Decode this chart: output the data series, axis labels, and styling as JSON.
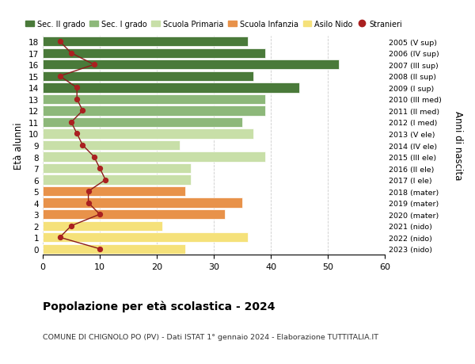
{
  "ages": [
    0,
    1,
    2,
    3,
    4,
    5,
    6,
    7,
    8,
    9,
    10,
    11,
    12,
    13,
    14,
    15,
    16,
    17,
    18
  ],
  "bar_values": [
    25,
    36,
    21,
    32,
    35,
    25,
    26,
    26,
    39,
    24,
    37,
    35,
    39,
    39,
    45,
    37,
    52,
    39,
    36
  ],
  "stranieri": [
    10,
    3,
    5,
    10,
    8,
    8,
    11,
    10,
    9,
    7,
    6,
    5,
    7,
    6,
    6,
    3,
    9,
    5,
    3
  ],
  "bar_colors": [
    "#f5e17a",
    "#f5e17a",
    "#f5e17a",
    "#e8924a",
    "#e8924a",
    "#e8924a",
    "#c8dfa8",
    "#c8dfa8",
    "#c8dfa8",
    "#c8dfa8",
    "#c8dfa8",
    "#8db87a",
    "#8db87a",
    "#8db87a",
    "#4a7a3a",
    "#4a7a3a",
    "#4a7a3a",
    "#4a7a3a",
    "#4a7a3a"
  ],
  "right_labels": [
    "2023 (nido)",
    "2022 (nido)",
    "2021 (nido)",
    "2020 (mater)",
    "2019 (mater)",
    "2018 (mater)",
    "2017 (I ele)",
    "2016 (II ele)",
    "2015 (III ele)",
    "2014 (IV ele)",
    "2013 (V ele)",
    "2012 (I med)",
    "2011 (II med)",
    "2010 (III med)",
    "2009 (I sup)",
    "2008 (II sup)",
    "2007 (III sup)",
    "2006 (IV sup)",
    "2005 (V sup)"
  ],
  "legend_labels": [
    "Sec. II grado",
    "Sec. I grado",
    "Scuola Primaria",
    "Scuola Infanzia",
    "Asilo Nido",
    "Stranieri"
  ],
  "legend_colors": [
    "#4a7a3a",
    "#8db87a",
    "#c8dfa8",
    "#e8924a",
    "#f5e17a",
    "#aa2020"
  ],
  "title": "Popolazione per età scolastica - 2024",
  "subtitle": "COMUNE DI CHIGNOLO PO (PV) - Dati ISTAT 1° gennaio 2024 - Elaborazione TUTTITALIA.IT",
  "ylabel_left": "Età alunni",
  "ylabel_right": "Anni di nascita",
  "xlim": [
    0,
    60
  ],
  "xticks": [
    0,
    10,
    20,
    30,
    40,
    50,
    60
  ],
  "stranieri_color": "#aa2020",
  "line_color": "#8b1a1a",
  "bg_color": "#ffffff"
}
